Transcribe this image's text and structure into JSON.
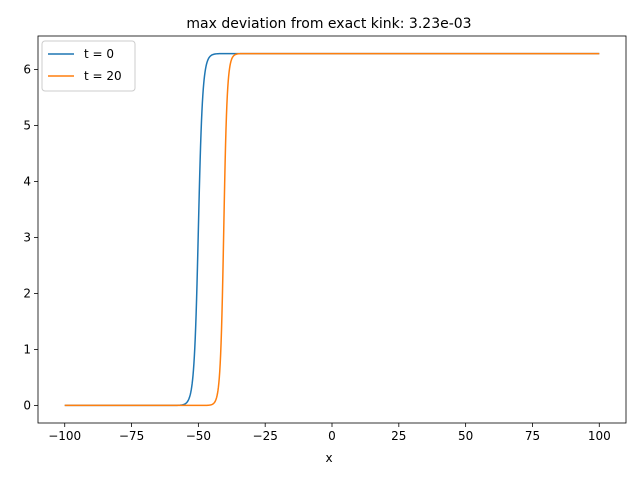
{
  "chart_data": {
    "type": "line",
    "title": "max deviation from exact kink: 3.23e-03",
    "xlabel": "x",
    "ylabel": "",
    "xlim": [
      -110,
      110
    ],
    "ylim": [
      -0.314,
      6.597
    ],
    "x_ticks": [
      -100,
      -75,
      -50,
      -25,
      0,
      25,
      50,
      75,
      100
    ],
    "x_tick_labels": [
      "−100",
      "−75",
      "−50",
      "−25",
      "0",
      "25",
      "50",
      "75",
      "100"
    ],
    "y_ticks": [
      0,
      1,
      2,
      3,
      4,
      5,
      6
    ],
    "y_tick_labels": [
      "0",
      "1",
      "2",
      "3",
      "4",
      "5",
      "6"
    ],
    "grid": false,
    "legend_position": "top-left",
    "x_range": [
      -100,
      100
    ],
    "amplitude": 6.2832,
    "series": [
      {
        "name": "t = 0",
        "color": "#1f77b4",
        "center": -50,
        "width": 1.0
      },
      {
        "name": "t = 20",
        "color": "#ff7f0e",
        "center": -40.5,
        "width": 0.8
      }
    ]
  }
}
